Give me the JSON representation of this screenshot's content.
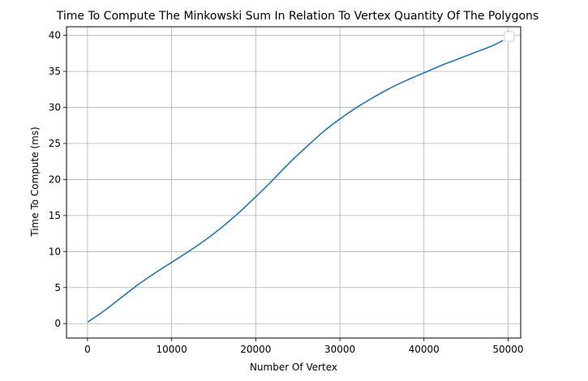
{
  "chart_data": {
    "type": "line",
    "title": "Time To Compute The Minkowski Sum In Relation To Vertex Quantity Of The Polygons",
    "xlabel": "Number Of Vertex",
    "ylabel": "Time To Compute (ms)",
    "xlim": [
      -2500,
      51500
    ],
    "ylim": [
      -2,
      41.2
    ],
    "xticks": [
      0,
      10000,
      20000,
      30000,
      40000,
      50000
    ],
    "xtick_labels": [
      "0",
      "10000",
      "20000",
      "30000",
      "40000",
      "50000"
    ],
    "yticks": [
      0,
      5,
      10,
      15,
      20,
      25,
      30,
      35,
      40
    ],
    "ytick_labels": [
      "0",
      "5",
      "10",
      "15",
      "20",
      "25",
      "30",
      "35",
      "40"
    ],
    "grid": true,
    "legend": "top-right",
    "series": [
      {
        "color": "#1f77b4",
        "x": [
          0,
          2000,
          4000,
          6000,
          8000,
          10000,
          12000,
          14000,
          16000,
          18000,
          20000,
          22000,
          24000,
          26000,
          28000,
          30000,
          32000,
          34000,
          36000,
          38000,
          40000,
          42000,
          44000,
          46000,
          48000,
          49400
        ],
        "y": [
          0.2,
          1.8,
          3.6,
          5.4,
          7.0,
          8.5,
          10.0,
          11.6,
          13.4,
          15.4,
          17.6,
          19.9,
          22.3,
          24.5,
          26.6,
          28.4,
          30.0,
          31.4,
          32.7,
          33.8,
          34.8,
          35.8,
          36.7,
          37.6,
          38.5,
          39.3
        ]
      }
    ]
  }
}
